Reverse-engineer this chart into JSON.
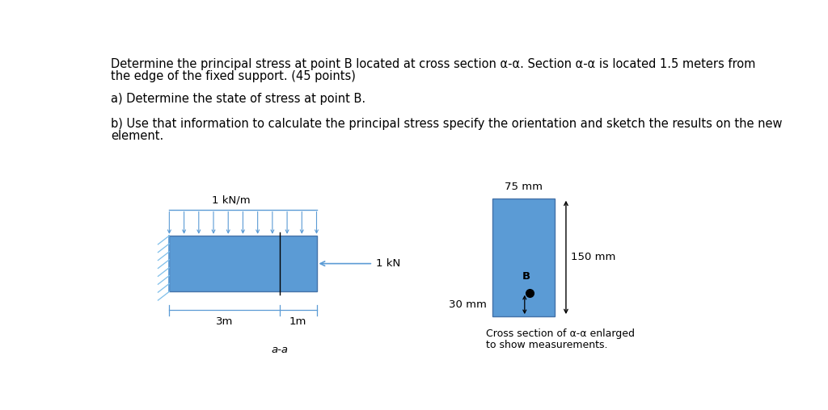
{
  "bg_color": "#ffffff",
  "text_color": "#000000",
  "blue_color": "#5B9BD5",
  "blue_edge": "#4472A8",
  "hatch_color": "#7FBFEA",
  "title_line1": "Determine the principal stress at point B located at cross section α-α. Section α-α is located 1.5 meters from",
  "title_line2": "the edge of the fixed support. (45 points)",
  "line_a": "a) Determine the state of stress at point B.",
  "line_b": "b) Use that information to calculate the principal stress specify the orientation and sketch the results on the new",
  "line_b2": "element.",
  "left_label": "1 kN/m",
  "force_label": "1 kN",
  "dim_left": "3m",
  "dim_right": "1m",
  "section_label": "a-a",
  "cross_label1": "Cross section of α-α enlarged",
  "cross_label2": "to show measurements.",
  "width_label": "75 mm",
  "height_label": "150 mm",
  "bottom_label": "30 mm",
  "point_label": "B",
  "fontsize_main": 10.5,
  "fontsize_small": 9.5,
  "fontsize_caption": 9.0
}
